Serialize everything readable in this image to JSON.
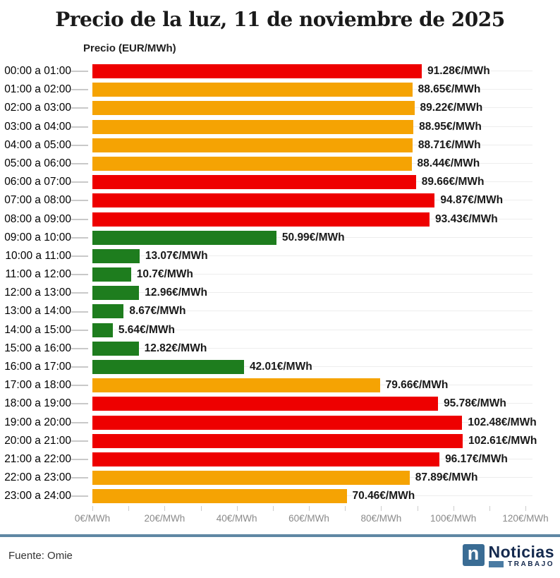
{
  "page": {
    "background": "#ffffff"
  },
  "header": {
    "title": "Precio de la luz, 11 de noviembre de 2025"
  },
  "chart_data": {
    "type": "bar",
    "orientation": "horizontal",
    "title": "Precio de la luz, 11 de noviembre de 2025",
    "axis_title": "Precio (EUR/MWh)",
    "xlim": [
      0,
      120
    ],
    "x_tick_minor_step": 10,
    "x_tick_major_step": 20,
    "x_tick_labels": [
      "0€/MWh",
      "20€/MWh",
      "40€/MWh",
      "60€/MWh",
      "80€/MWh",
      "100€/MWh",
      "120€/MWh"
    ],
    "grid": "faint horizontal row lines behind bars",
    "legend": "none",
    "categories": [
      "00:00 a 01:00",
      "01:00 a 02:00",
      "02:00 a 03:00",
      "03:00 a 04:00",
      "04:00 a 05:00",
      "05:00 a 06:00",
      "06:00 a 07:00",
      "07:00 a 08:00",
      "08:00 a 09:00",
      "09:00 a 10:00",
      "10:00 a 11:00",
      "11:00 a 12:00",
      "12:00 a 13:00",
      "13:00 a 14:00",
      "14:00 a 15:00",
      "15:00 a 16:00",
      "16:00 a 17:00",
      "17:00 a 18:00",
      "18:00 a 19:00",
      "19:00 a 20:00",
      "20:00 a 21:00",
      "21:00 a 22:00",
      "22:00 a 23:00",
      "23:00 a 24:00"
    ],
    "values": [
      91.28,
      88.65,
      89.22,
      88.95,
      88.71,
      88.44,
      89.66,
      94.87,
      93.43,
      50.99,
      13.07,
      10.7,
      12.96,
      8.67,
      5.64,
      12.82,
      42.01,
      79.66,
      95.78,
      102.48,
      102.61,
      96.17,
      87.89,
      70.46
    ],
    "value_labels": [
      "91.28€/MWh",
      "88.65€/MWh",
      "89.22€/MWh",
      "88.95€/MWh",
      "88.71€/MWh",
      "88.44€/MWh",
      "89.66€/MWh",
      "94.87€/MWh",
      "93.43€/MWh",
      "50.99€/MWh",
      "13.07€/MWh",
      "10.7€/MWh",
      "12.96€/MWh",
      "8.67€/MWh",
      "5.64€/MWh",
      "12.82€/MWh",
      "42.01€/MWh",
      "79.66€/MWh",
      "95.78€/MWh",
      "102.48€/MWh",
      "102.61€/MWh",
      "96.17€/MWh",
      "87.89€/MWh",
      "70.46€/MWh"
    ],
    "bar_colors": [
      "red",
      "orange",
      "orange",
      "orange",
      "orange",
      "orange",
      "red",
      "red",
      "red",
      "green",
      "green",
      "green",
      "green",
      "green",
      "green",
      "green",
      "green",
      "orange",
      "red",
      "red",
      "red",
      "red",
      "orange",
      "orange"
    ],
    "color_map": {
      "red": "#ee0000",
      "orange": "#f5a303",
      "green": "#1e7d1e"
    }
  },
  "footer": {
    "source": "Fuente: Omie",
    "divider_color": "#5f87a3",
    "logo": {
      "letter": "n",
      "name": "Noticias",
      "tagline": "TRABAJO",
      "square_color": "#3a6c94",
      "text_color": "#152a4e",
      "bar_color": "#4a7ba3"
    }
  }
}
